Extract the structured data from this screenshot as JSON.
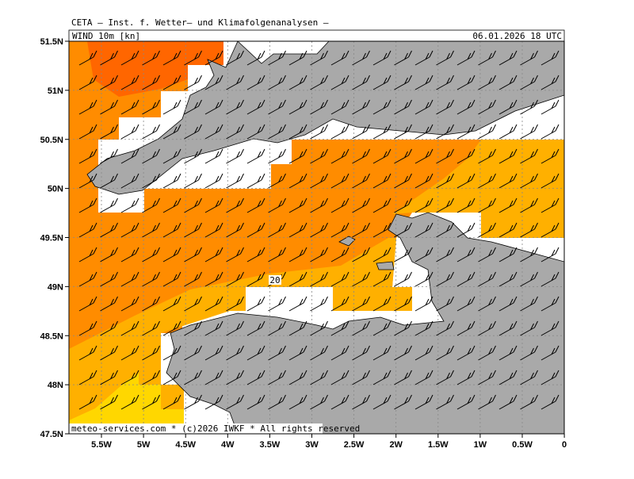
{
  "header": {
    "title": "CETA – Inst. f. Wetter– und Klimafolgenanalysen –",
    "field": "WIND 10m [kn]",
    "valid_time": "06.01.2026 18 UTC"
  },
  "map": {
    "x_ticks": [
      "5.5W",
      "5W",
      "4.5W",
      "4W",
      "3.5W",
      "3W",
      "2.5W",
      "2W",
      "1.5W",
      "1W",
      "0.5W",
      "0"
    ],
    "y_ticks": [
      "51.5N",
      "51N",
      "50.5N",
      "50N",
      "49.5N",
      "49N",
      "48.5N",
      "48N",
      "47.5N"
    ],
    "contour_label": "20"
  },
  "footer": "meteo-services.com * (c)2026 IWKF * All rights reserved"
}
